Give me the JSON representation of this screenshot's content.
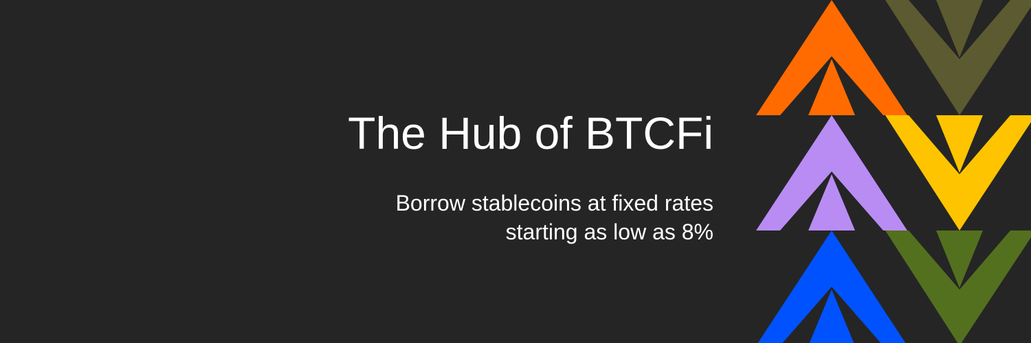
{
  "banner": {
    "title": "The Hub of BTCFi",
    "subtitle_line1": "Borrow stablecoins at fixed rates",
    "subtitle_line2": "starting as low as 8%"
  },
  "pattern": {
    "background": "#252525",
    "colors": {
      "orange": "#ff6b00",
      "olive": "#5b5a30",
      "lavender": "#b98cf4",
      "yellow": "#ffc400",
      "blue": "#0052ff",
      "green": "#53701f"
    },
    "icons": [
      "up-chevron-icon",
      "down-chevron-icon"
    ]
  }
}
